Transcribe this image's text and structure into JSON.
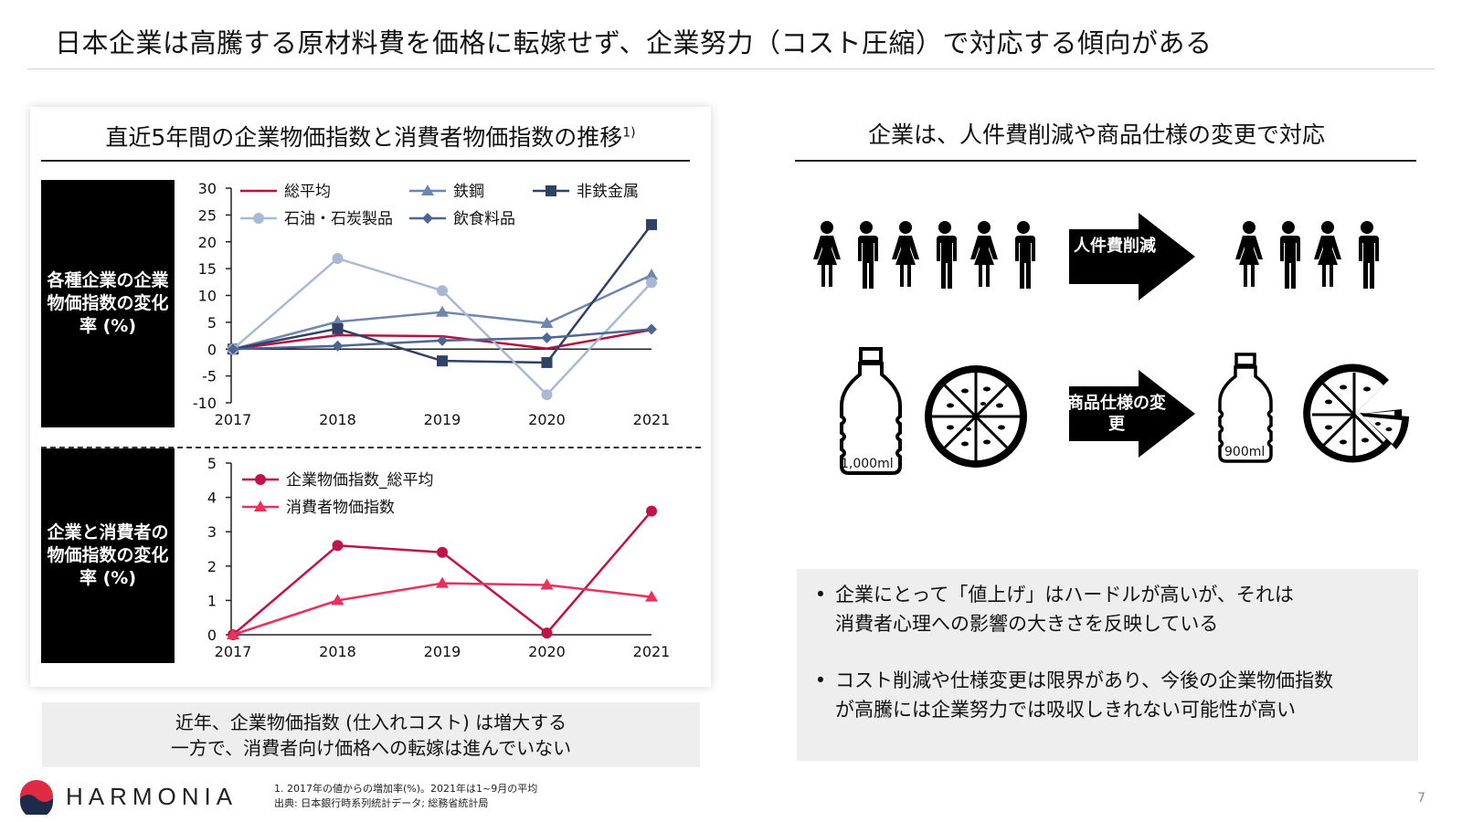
{
  "title": "日本企業は高騰する原材料費を価格に転嫁せず、企業努力（コスト圧縮）で対応する傾向がある",
  "left_panel": {
    "title": "直近5年間の企業物価指数と消費者物価指数の推移",
    "title_sup": "1)",
    "label_top": "各種企業の企業物価指数の変化率 (%)",
    "label_bottom": "企業と消費者の物価指数の変化率 (%)"
  },
  "summary": {
    "line1": "近年、企業物価指数 (仕入れコスト) は増大する",
    "line2": "一方で、消費者向け価格への転嫁は進んでいない"
  },
  "right_panel": {
    "title": "企業は、人件費削減や商品仕様の変更で対応",
    "arrow1": "人件費削減",
    "arrow2": "商品仕様の変更",
    "bottle_big": "1,000ml",
    "bottle_small": "900ml",
    "notes": [
      [
        "企業にとって「値上げ」はハードルが高いが、それは",
        "消費者心理への影響の大きさを反映している"
      ],
      [
        "コスト削減や仕様変更は限界があり、今後の企業物価指数",
        "が高騰には企業努力では吸収しきれない可能性が高い"
      ]
    ]
  },
  "footer": {
    "logo": "HARMONIA",
    "footnote1": "1. 2017年の値からの増加率(%)。2021年は1~9月の平均",
    "footnote2": "出典: 日本銀行時系列統計データ; 総務省統計局",
    "page": "7"
  },
  "chart_data": [
    {
      "type": "line",
      "x": [
        "2017",
        "2018",
        "2019",
        "2020",
        "2021"
      ],
      "ylim": [
        -10,
        30
      ],
      "yticks": [
        -10,
        -5,
        0,
        5,
        10,
        15,
        20,
        25,
        30
      ],
      "series": [
        {
          "name": "総平均",
          "marker": "none",
          "color": "#b5133f",
          "values": [
            0,
            2.6,
            2.4,
            0.1,
            3.6
          ]
        },
        {
          "name": "鉄鋼",
          "marker": "triangle",
          "color": "#6f86ad",
          "values": [
            0,
            5.1,
            6.9,
            4.8,
            13.8
          ]
        },
        {
          "name": "非鉄金属",
          "marker": "square",
          "color": "#2f4266",
          "values": [
            0,
            3.8,
            -2.2,
            -2.5,
            23.2
          ]
        },
        {
          "name": "石油・石炭製品",
          "marker": "circle",
          "color": "#a9b8d4",
          "values": [
            0,
            16.9,
            10.9,
            -8.5,
            12.4
          ]
        },
        {
          "name": "飲食料品",
          "marker": "diamond",
          "color": "#4d6495",
          "values": [
            0,
            0.6,
            1.6,
            2.1,
            3.7
          ]
        }
      ]
    },
    {
      "type": "line",
      "x": [
        "2017",
        "2018",
        "2019",
        "2020",
        "2021"
      ],
      "ylim": [
        0,
        5
      ],
      "yticks": [
        0,
        1,
        2,
        3,
        4,
        5
      ],
      "series": [
        {
          "name": "企業物価指数_総平均",
          "marker": "circle",
          "color": "#c0134a",
          "values": [
            0,
            2.6,
            2.4,
            0.05,
            3.6
          ]
        },
        {
          "name": "消費者物価指数",
          "marker": "triangle",
          "color": "#e8315c",
          "values": [
            0,
            1.0,
            1.5,
            1.45,
            1.1
          ]
        }
      ]
    }
  ]
}
